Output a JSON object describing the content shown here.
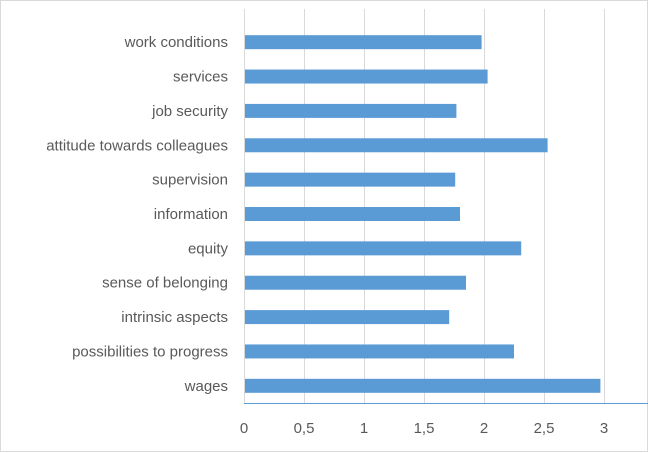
{
  "chart_data": {
    "type": "bar",
    "orientation": "horizontal",
    "title": "",
    "xlabel": "",
    "ylabel": "",
    "categories": [
      "work conditions",
      "services",
      "job security",
      "attitude towards colleagues",
      "supervision",
      "information",
      "equity",
      "sense of belonging",
      "intrinsic aspects",
      "possibilities to progress",
      "wages"
    ],
    "values": [
      1.98,
      2.03,
      1.77,
      2.53,
      1.76,
      1.8,
      2.31,
      1.85,
      1.71,
      2.25,
      2.97
    ],
    "xlim": [
      0,
      3.4
    ],
    "ticks": [
      {
        "value": 0,
        "label": "0"
      },
      {
        "value": 0.5,
        "label": "0,5"
      },
      {
        "value": 1,
        "label": "1"
      },
      {
        "value": 1.5,
        "label": "1,5"
      },
      {
        "value": 2,
        "label": "2"
      },
      {
        "value": 2.5,
        "label": "2,5"
      },
      {
        "value": 3,
        "label": "3"
      }
    ],
    "grid": true,
    "legend": "none",
    "colors": {
      "bar": "#5b9bd5",
      "grid": "#d9d9d9",
      "axis": "#5b9bd5",
      "text": "#595959"
    }
  }
}
